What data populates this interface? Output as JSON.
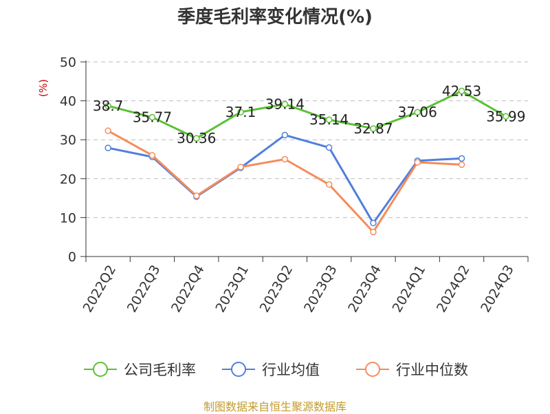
{
  "chart_data": {
    "type": "line",
    "title": "季度毛利率变化情况(%)",
    "ylabel": "(%)",
    "xlabel": "",
    "ylim": [
      0,
      50
    ],
    "yticks": [
      0,
      10,
      20,
      30,
      40,
      50
    ],
    "grid": true,
    "legend_position": "bottom",
    "categories": [
      "2022Q2",
      "2022Q3",
      "2022Q4",
      "2023Q1",
      "2023Q2",
      "2023Q3",
      "2023Q4",
      "2024Q1",
      "2024Q2",
      "2024Q3"
    ],
    "series": [
      {
        "name": "公司毛利率",
        "color": "#5ac134",
        "values": [
          38.7,
          35.77,
          30.36,
          37.1,
          39.14,
          35.14,
          32.87,
          37.06,
          42.53,
          35.99
        ],
        "labels": [
          "38.7",
          "35.77",
          "30.36",
          "37.1",
          "39.14",
          "35.14",
          "32.87",
          "37.06",
          "42.53",
          "35.99"
        ]
      },
      {
        "name": "行业均值",
        "color": "#4f7fdc",
        "values": [
          27.9,
          25.6,
          15.4,
          22.8,
          31.2,
          28.0,
          8.6,
          24.6,
          25.2,
          null
        ]
      },
      {
        "name": "行业中位数",
        "color": "#f58c5a",
        "values": [
          32.3,
          26.0,
          15.6,
          23.0,
          25.0,
          18.5,
          6.3,
          24.2,
          23.6,
          null
        ]
      }
    ],
    "source": "制图数据来自恒生聚源数据库"
  }
}
